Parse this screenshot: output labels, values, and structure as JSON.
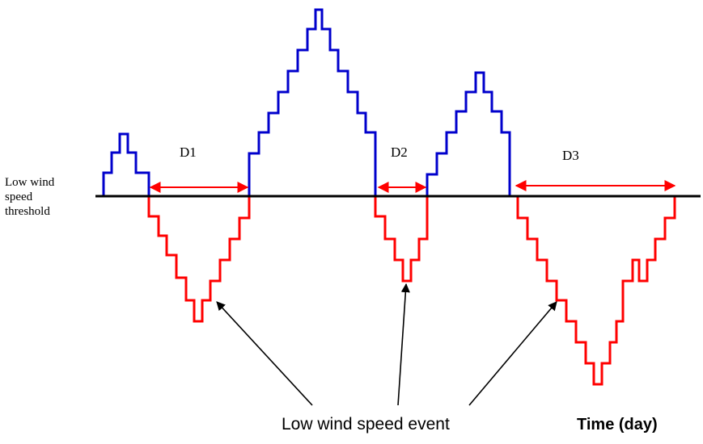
{
  "labels": {
    "threshold_lines": [
      "Low wind",
      "speed",
      "threshold"
    ],
    "event": "Low wind speed event",
    "time_axis": "Time (day)"
  },
  "durations": [
    {
      "name": "D1"
    },
    {
      "name": "D2"
    },
    {
      "name": "D3"
    }
  ],
  "colors": {
    "above_threshold": "#0000cc",
    "below_threshold": "#ff0000",
    "threshold_line": "#000000",
    "duration_arrow": "#ff0000",
    "pointer_arrow": "#000000"
  }
}
